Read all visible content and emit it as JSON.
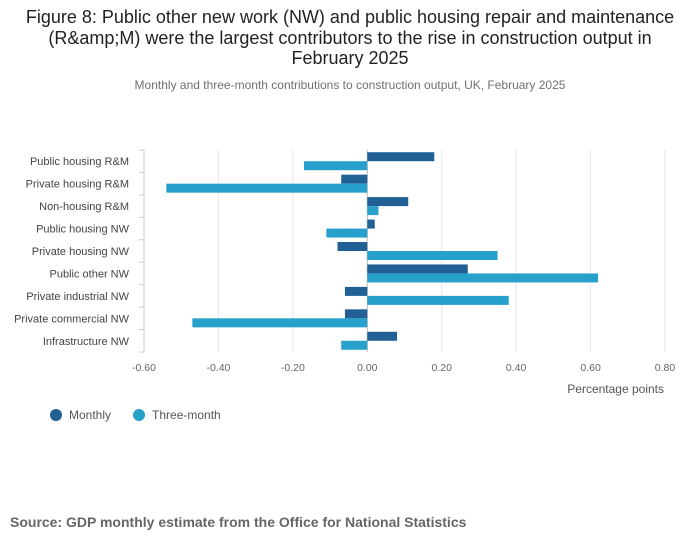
{
  "title": "Figure 8: Public other new work (NW) and public housing repair and maintenance (R&amp;M) were the largest contributors to the rise in construction output in February 2025",
  "subtitle": "Monthly and three-month contributions to construction output, UK, February 2025",
  "source": "Source: GDP monthly estimate from the Office for National Statistics",
  "colors": {
    "monthly": "#206095",
    "three_month": "#27a0cc"
  },
  "chart_data": {
    "type": "bar",
    "orientation": "horizontal",
    "categories": [
      "Public housing R&M",
      "Private housing R&M",
      "Non-housing R&M",
      "Public housing NW",
      "Private housing NW",
      "Public other NW",
      "Private industrial NW",
      "Private commercial NW",
      "Infrastructure NW"
    ],
    "series": [
      {
        "name": "Monthly",
        "values": [
          0.18,
          -0.07,
          0.11,
          0.02,
          -0.08,
          0.27,
          -0.06,
          -0.06,
          0.08
        ]
      },
      {
        "name": "Three-month",
        "values": [
          -0.17,
          -0.54,
          0.03,
          -0.11,
          0.35,
          0.62,
          0.38,
          -0.47,
          -0.07
        ]
      }
    ],
    "xlabel": "Percentage points",
    "xlim": [
      -0.6,
      0.8
    ],
    "xticks": [
      "-0.60",
      "-0.40",
      "-0.20",
      "0.00",
      "0.20",
      "0.40",
      "0.60",
      "0.80"
    ],
    "grid": true,
    "legend_position": "bottom-left"
  }
}
